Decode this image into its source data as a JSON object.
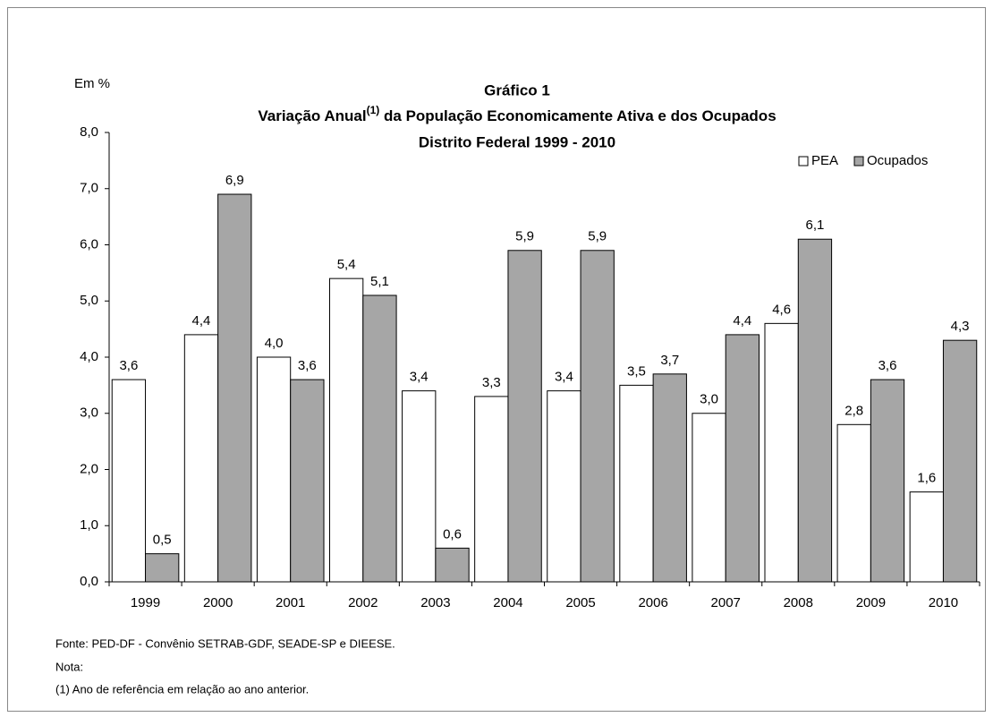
{
  "chart_data": {
    "type": "bar",
    "title": "Gráfico 1",
    "subtitle": [
      "Variação Anual",
      "(1)",
      " da População Economicamente Ativa e dos Ocupados"
    ],
    "subtitle2": "Distrito Federal  1999 - 2010",
    "y_label": "Em %",
    "categories": [
      "1999",
      "2000",
      "2001",
      "2002",
      "2003",
      "2004",
      "2005",
      "2006",
      "2007",
      "2008",
      "2009",
      "2010"
    ],
    "series": [
      {
        "name": "PEA",
        "color": "#ffffff",
        "values": [
          3.6,
          4.4,
          4.0,
          5.4,
          3.4,
          3.3,
          3.4,
          3.5,
          3.0,
          4.6,
          2.8,
          1.6
        ],
        "value_labels": [
          "3,6",
          "4,4",
          "4,0",
          "5,4",
          "3,4",
          "3,3",
          "3,4",
          "3,5",
          "3,0",
          "4,6",
          "2,8",
          "1,6"
        ]
      },
      {
        "name": "Ocupados",
        "color": "#a6a6a6",
        "values": [
          0.5,
          6.9,
          3.6,
          5.1,
          0.6,
          5.9,
          5.9,
          3.7,
          4.4,
          6.1,
          3.6,
          4.3
        ],
        "value_labels": [
          "0,5",
          "6,9",
          "3,6",
          "5,1",
          "0,6",
          "5,9",
          "5,9",
          "3,7",
          "4,4",
          "6,1",
          "3,6",
          "4,3"
        ]
      }
    ],
    "ylim": [
      0,
      8
    ],
    "yticks": [
      {
        "value": 0,
        "label": "0,0"
      },
      {
        "value": 1,
        "label": "1,0"
      },
      {
        "value": 2,
        "label": "2,0"
      },
      {
        "value": 3,
        "label": "3,0"
      },
      {
        "value": 4,
        "label": "4,0"
      },
      {
        "value": 5,
        "label": "5,0"
      },
      {
        "value": 6,
        "label": "6,0"
      },
      {
        "value": 7,
        "label": "7,0"
      },
      {
        "value": 8,
        "label": "8,0"
      }
    ],
    "grid": false,
    "legend": "top-right",
    "notes": [
      "Fonte: PED-DF - Convênio SETRAB-GDF, SEADE-SP e DIEESE.",
      "Nota:",
      "(1) Ano de referência em relação ao ano anterior."
    ]
  }
}
